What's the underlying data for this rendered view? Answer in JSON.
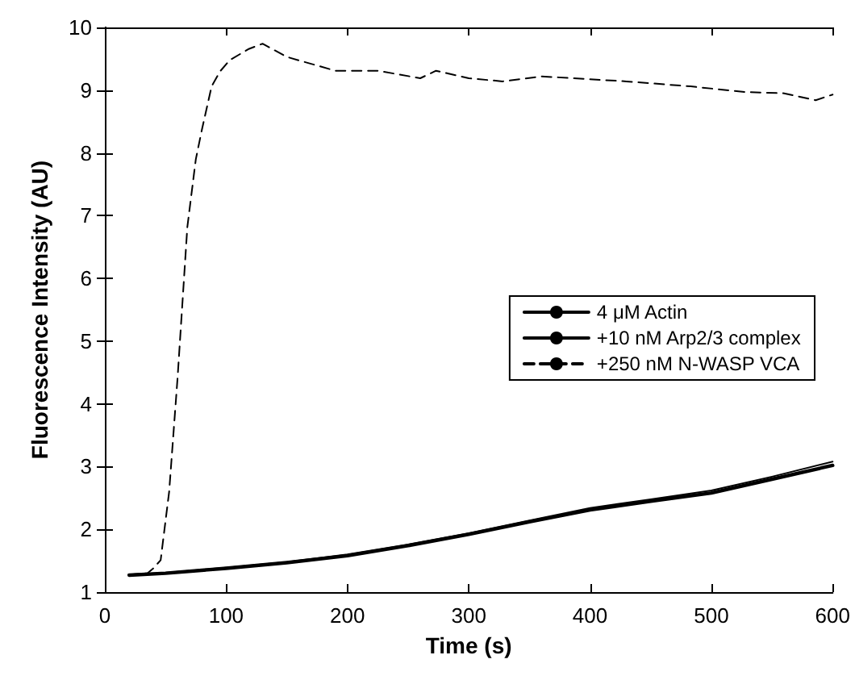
{
  "chart_data": {
    "type": "line",
    "xlabel": "Time (s)",
    "ylabel": "Fluorescence Intensity (AU)",
    "xlim": [
      0,
      600
    ],
    "xticks": [
      0,
      100,
      200,
      300,
      400,
      500,
      600
    ],
    "ylim": [
      1,
      10
    ],
    "yticks": [
      1,
      2,
      3,
      4,
      5,
      6,
      7,
      8,
      9,
      10
    ],
    "grid": false,
    "legend": "right",
    "marker": "none",
    "series": [
      {
        "name": "4 μM Actin",
        "color": "#000000",
        "line_style": "solid",
        "x": [
          20,
          50,
          100,
          150,
          200,
          250,
          300,
          350,
          400,
          450,
          500,
          550,
          600
        ],
        "values": [
          1.28,
          1.31,
          1.39,
          1.48,
          1.6,
          1.76,
          1.94,
          2.14,
          2.34,
          2.48,
          2.62,
          2.84,
          3.08
        ]
      },
      {
        "name": "+10 nM Arp2/3 complex",
        "color": "#000000",
        "line_style": "solid",
        "x": [
          20,
          50,
          100,
          150,
          200,
          250,
          300,
          350,
          400,
          450,
          500,
          550,
          600
        ],
        "values": [
          1.27,
          1.3,
          1.38,
          1.47,
          1.58,
          1.74,
          1.92,
          2.12,
          2.31,
          2.45,
          2.58,
          2.8,
          3.02
        ]
      },
      {
        "name": "+250 nM N-WASP VCA",
        "color": "#000000",
        "line_style": "dashed",
        "x": [
          20,
          35,
          40,
          46,
          53,
          60,
          68,
          75,
          80,
          88,
          95,
          103,
          119,
          130,
          150,
          170,
          190,
          225,
          260,
          273,
          300,
          328,
          360,
          386,
          430,
          483,
          528,
          560,
          586,
          600
        ],
        "values": [
          1.28,
          1.3,
          1.38,
          1.51,
          2.6,
          4.43,
          6.82,
          7.9,
          8.37,
          9.06,
          9.3,
          9.48,
          9.66,
          9.74,
          9.53,
          9.42,
          9.31,
          9.31,
          9.19,
          9.31,
          9.19,
          9.14,
          9.22,
          9.19,
          9.14,
          9.06,
          8.97,
          8.95,
          8.84,
          8.93
        ]
      }
    ]
  }
}
